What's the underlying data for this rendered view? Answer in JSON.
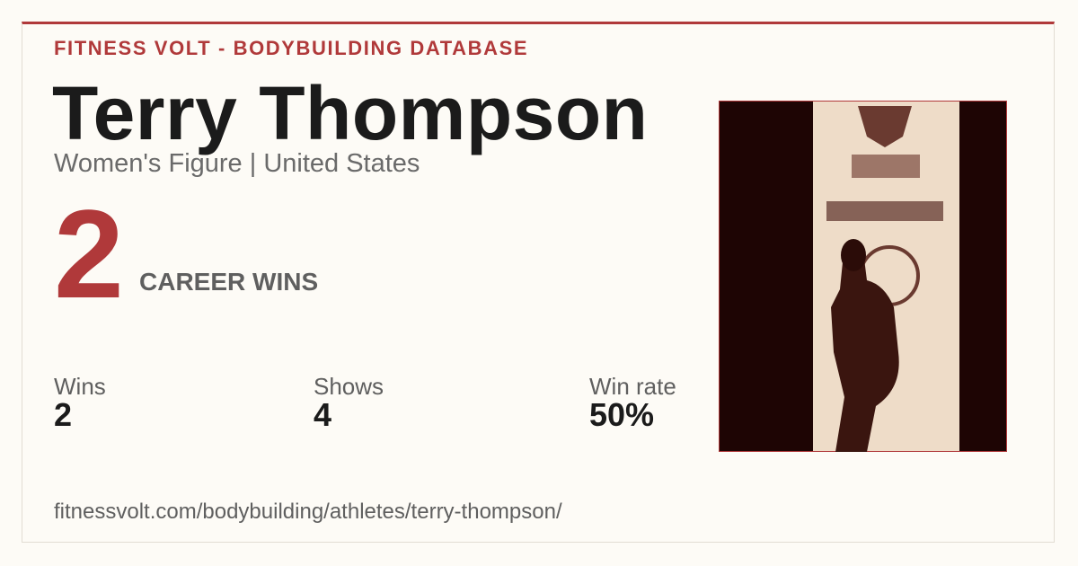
{
  "header": {
    "site": "FITNESS VOLT - BODYBUILDING DATABASE"
  },
  "athlete": {
    "name": "Terry Thompson",
    "subtitle": "Women's Figure | United States"
  },
  "highlight": {
    "value": 2,
    "label": "CAREER WINS"
  },
  "stats": [
    {
      "label": "Wins",
      "value": 2
    },
    {
      "label": "Shows",
      "value": 4
    },
    {
      "label": "Win rate",
      "value": "50%"
    }
  ],
  "footer": {
    "url": "fitnessvolt.com/bodybuilding/athletes/terry-thompson/"
  }
}
